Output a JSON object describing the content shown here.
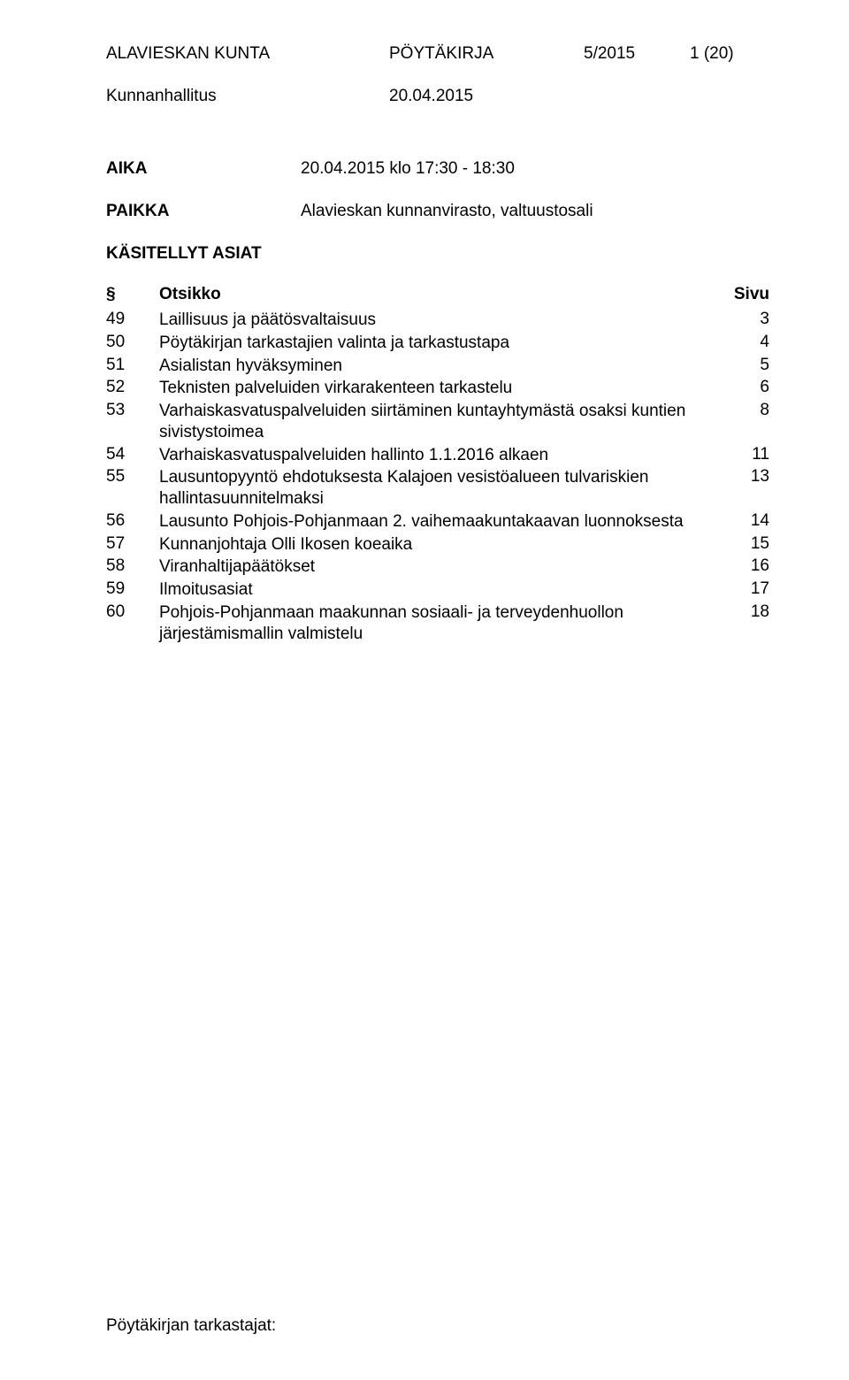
{
  "header": {
    "org": "ALAVIESKAN KUNTA",
    "doc_type": "PÖYTÄKIRJA",
    "meeting_no": "5/2015",
    "page_no": "1 (20)"
  },
  "subheader": {
    "body": "Kunnanhallitus",
    "date": "20.04.2015"
  },
  "time": {
    "label": "AIKA",
    "value": "20.04.2015 klo 17:30 - 18:30"
  },
  "place": {
    "label": "PAIKKA",
    "value": "Alavieskan kunnanvirasto, valtuustosali"
  },
  "processed_title": "KÄSITELLYT ASIAT",
  "columns": {
    "num": "§",
    "title": "Otsikko",
    "page": "Sivu"
  },
  "items": [
    {
      "num": "49",
      "title": "Laillisuus ja päätösvaltaisuus",
      "page": "3"
    },
    {
      "num": "50",
      "title": "Pöytäkirjan tarkastajien valinta ja tarkastustapa",
      "page": "4"
    },
    {
      "num": "51",
      "title": "Asialistan hyväksyminen",
      "page": "5"
    },
    {
      "num": "52",
      "title": "Teknisten palveluiden virkarakenteen tarkastelu",
      "page": "6"
    },
    {
      "num": "53",
      "title": "Varhaiskasvatuspalveluiden siirtäminen kuntayhtymästä osaksi kuntien sivistystoimea",
      "page": "8"
    },
    {
      "num": "54",
      "title": "Varhaiskasvatuspalveluiden hallinto 1.1.2016 alkaen",
      "page": "11"
    },
    {
      "num": "55",
      "title": "Lausuntopyyntö ehdotuksesta Kalajoen vesistöalueen tulvariskien hallintasuunnitelmaksi",
      "page": "13"
    },
    {
      "num": "56",
      "title": "Lausunto Pohjois-Pohjanmaan 2. vaihemaakuntakaavan luonnoksesta",
      "page": "14"
    },
    {
      "num": "57",
      "title": "Kunnanjohtaja Olli Ikosen koeaika",
      "page": "15"
    },
    {
      "num": "58",
      "title": "Viranhaltijapäätökset",
      "page": "16"
    },
    {
      "num": "59",
      "title": "Ilmoitusasiat",
      "page": "17"
    },
    {
      "num": "60",
      "title": "Pohjois-Pohjanmaan maakunnan sosiaali- ja terveydenhuollon  järjestämismallin valmistelu",
      "page": "18"
    }
  ],
  "footer": "Pöytäkirjan tarkastajat:"
}
